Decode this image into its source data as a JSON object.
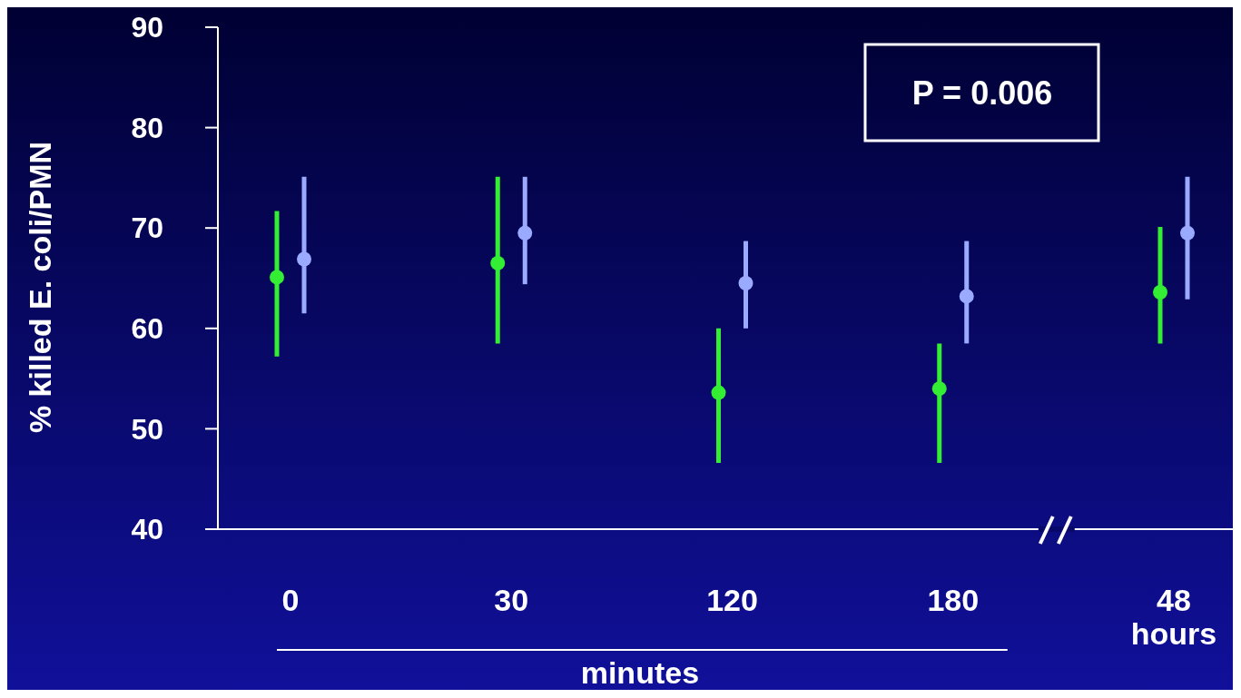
{
  "chart_data": {
    "type": "scatter",
    "ylabel": "% killed E. coli/PMN",
    "xlabel": "minutes",
    "categories": [
      "0",
      "30",
      "120",
      "180",
      "48 hours"
    ],
    "ylim": [
      40,
      90
    ],
    "yticks": [
      40,
      50,
      60,
      70,
      80,
      90
    ],
    "grid": false,
    "marker": "circle",
    "annotations": [
      "P = 0.006"
    ],
    "series": [
      {
        "color": "#33ee33",
        "values": [
          65.1,
          66.5,
          53.6,
          54.0,
          63.6
        ],
        "errors": [
          [
            57.2,
            71.7
          ],
          [
            58.5,
            75.1
          ],
          [
            46.6,
            60.0
          ],
          [
            46.6,
            58.5
          ],
          [
            58.5,
            70.1
          ]
        ]
      },
      {
        "color": "#99aaff",
        "values": [
          66.9,
          69.5,
          64.5,
          63.2,
          69.5
        ],
        "errors": [
          [
            61.5,
            75.1
          ],
          [
            64.4,
            75.1
          ],
          [
            60.0,
            68.7
          ],
          [
            58.5,
            68.7
          ],
          [
            62.9,
            75.1
          ]
        ]
      }
    ]
  }
}
